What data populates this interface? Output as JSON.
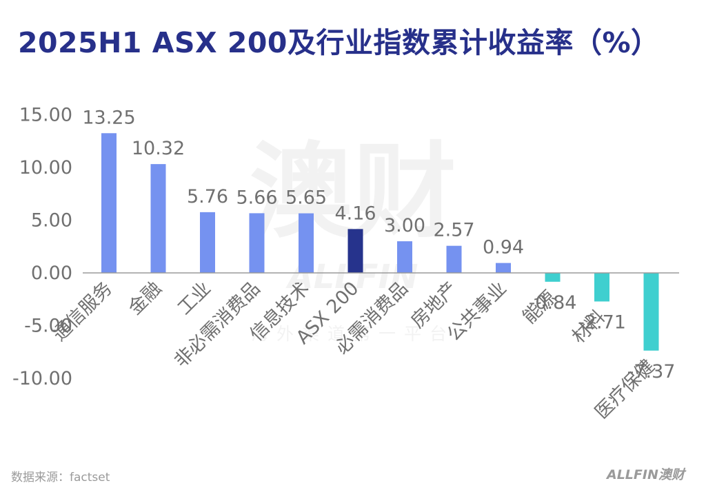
{
  "title": "2025H1 ASX 200及行业指数累计收益率（%）",
  "source": "数据来源：factset",
  "brand": "ALLFIN澳财",
  "watermark": {
    "main": "澳财",
    "latin": "ALLFIN",
    "tagline": "海外渠道第一平台"
  },
  "colors": {
    "positive": "#7592f0",
    "highlight": "#26338c",
    "negative": "#3fcfcf",
    "axis_text": "#707070",
    "baseline": "#9a9a9a",
    "title": "#27308a"
  },
  "chart_data": {
    "type": "bar",
    "title": "2025H1 ASX 200及行业指数累计收益率（%）",
    "categories": [
      "通信服务",
      "金融",
      "工业",
      "非必需消费品",
      "信息技术",
      "ASX 200",
      "必需消费品",
      "房地产",
      "公共事业",
      "能源",
      "材料",
      "医疗保健"
    ],
    "values": [
      13.25,
      10.32,
      5.76,
      5.66,
      5.65,
      4.16,
      3.0,
      2.57,
      0.94,
      -0.84,
      -2.71,
      -7.37
    ],
    "value_labels": [
      "13.25",
      "10.32",
      "5.76",
      "5.66",
      "5.65",
      "4.16",
      "3.00",
      "2.57",
      "0.94",
      "-0.84",
      "-2.71",
      "-7.37"
    ],
    "highlight_category": "ASX 200",
    "yticks": [
      "15.00",
      "10.00",
      "5.00",
      "0.00",
      "-5.00",
      "-10.00"
    ],
    "ylim": [
      -10,
      15
    ],
    "xlabel": "",
    "ylabel": "",
    "grid": false,
    "legend": "none"
  }
}
